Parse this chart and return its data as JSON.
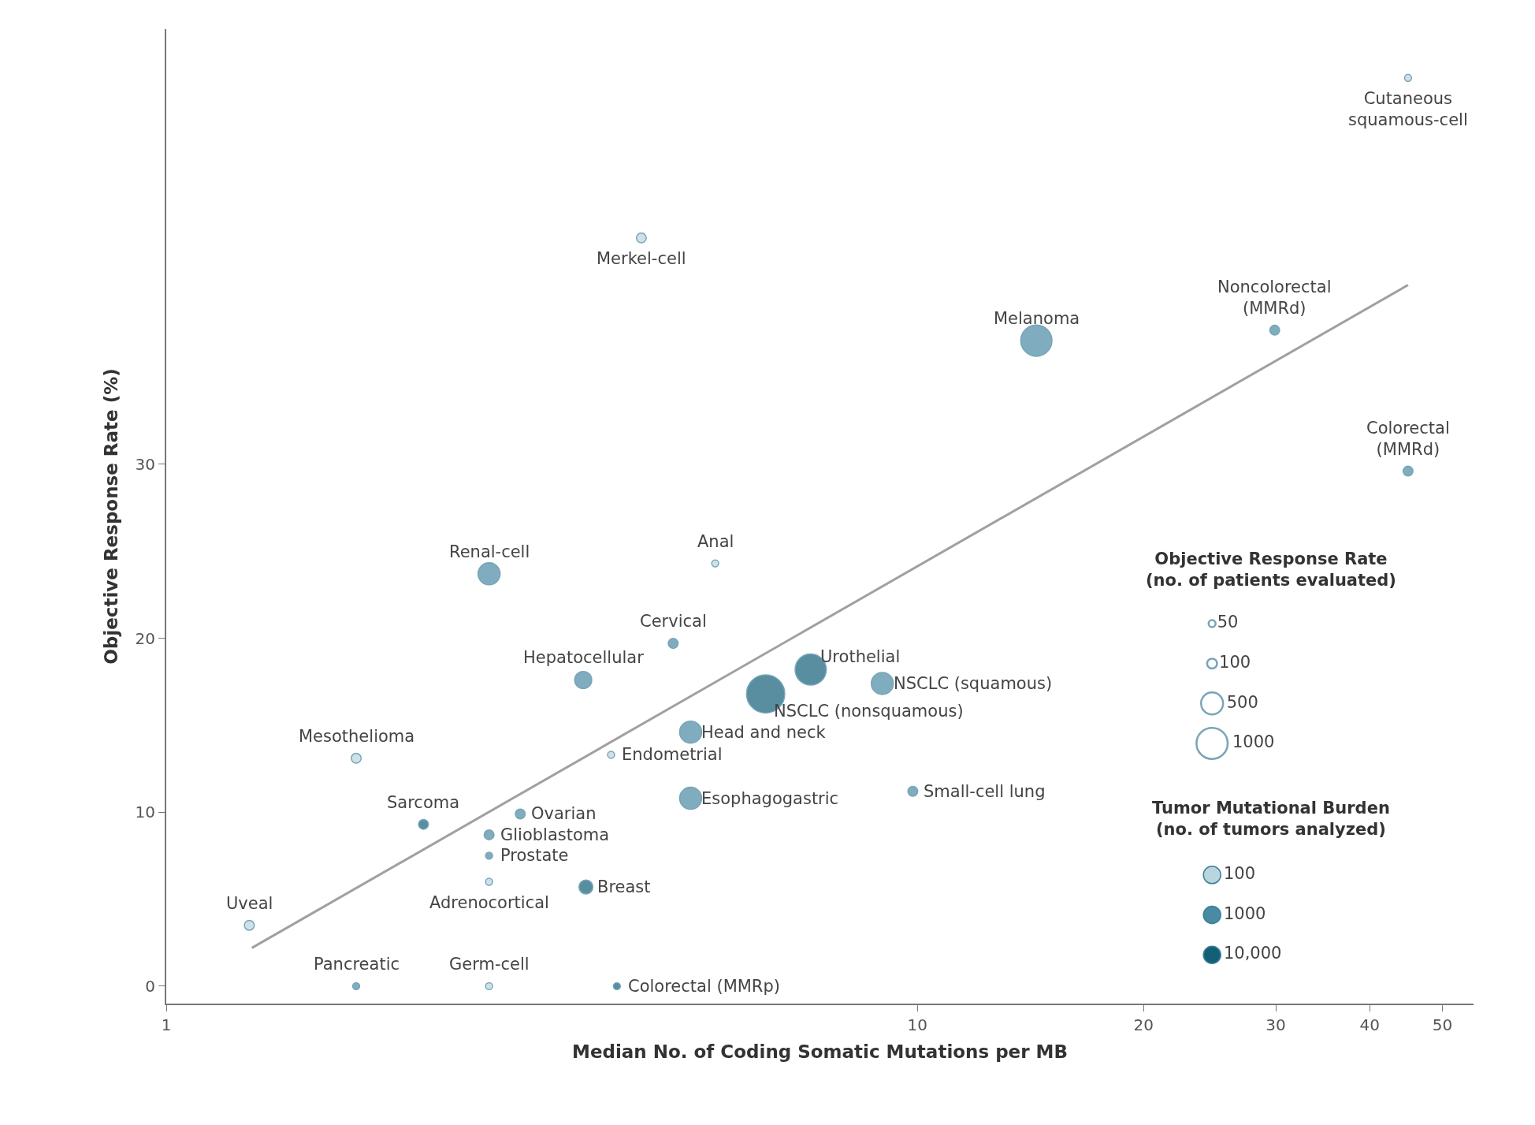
{
  "chart_data": {
    "type": "bubble",
    "xlabel": "Median No. of Coding Somatic Mutations per MB",
    "ylabel": "Objective Response Rate (%)",
    "legend_title": "Tumor Mutational Burden\n(no. of tumors analyzed)",
    "xlim": [
      1,
      55
    ],
    "xticks": [
      1,
      10,
      20,
      30,
      40,
      50
    ],
    "log": "x",
    "ylim": [
      -1,
      55
    ],
    "yticks": [
      0,
      10,
      20,
      30
    ],
    "size_legend": [
      50,
      100,
      500,
      1000
    ],
    "legend": "bottom right",
    "series": [
      {
        "name": "100",
        "color": "#b9d5e0",
        "x": [
          45.0,
          4.29,
          5.38,
          1.79,
          3.91,
          2.69,
          1.29,
          2.69
        ],
        "values": [
          52.2,
          43.0,
          24.3,
          13.1,
          13.3,
          6.0,
          3.5,
          0
        ],
        "sizes": [
          50,
          100,
          50,
          100,
          50,
          50,
          100,
          50
        ]
      },
      {
        "name": "1000",
        "color": "#4a8aa3",
        "x": [
          14.4,
          29.9,
          45.0,
          2.69,
          4.73,
          3.59,
          8.98,
          4.99,
          4.99,
          9.86,
          2.96,
          2.69,
          2.69,
          1.79
        ],
        "values": [
          37.1,
          37.7,
          29.6,
          23.7,
          19.7,
          17.6,
          17.4,
          14.6,
          10.8,
          11.2,
          9.9,
          8.7,
          7.5,
          0
        ],
        "sizes": [
          1000,
          100,
          100,
          500,
          100,
          300,
          500,
          500,
          500,
          100,
          100,
          100,
          50,
          50
        ]
      },
      {
        "name": "10,000",
        "color": "#125f78",
        "x": [
          7.21,
          6.28,
          2.2,
          3.62,
          3.98
        ],
        "values": [
          18.2,
          16.8,
          9.3,
          5.7,
          0
        ],
        "sizes": [
          1000,
          1500,
          100,
          200,
          50
        ]
      },
      {
        "type": "line",
        "color": "#a0a0a0",
        "x": [
          1.3,
          45.0
        ],
        "values": [
          2.2,
          40.3
        ]
      }
    ],
    "annotations": [
      "Objective Response Rate\n(no. of patients evaluated)",
      {
        "text": "Cutaneous\nsquamous-cell",
        "x": 45.0,
        "y": 52.2
      },
      {
        "text": "Merkel-cell",
        "x": 4.29,
        "y": 43.0
      },
      {
        "text": "Melanoma",
        "x": 14.4,
        "y": 37.1
      },
      {
        "text": "Noncolorectal\n(MMRd)",
        "x": 29.9,
        "y": 37.7
      },
      {
        "text": "Colorectal\n(MMRd)",
        "x": 45.0,
        "y": 29.6
      },
      {
        "text": "Renal-cell",
        "x": 2.69,
        "y": 23.7
      },
      {
        "text": "Anal",
        "x": 5.38,
        "y": 24.3
      },
      {
        "text": "Cervical",
        "x": 4.73,
        "y": 19.7
      },
      {
        "text": "Hepatocellular",
        "x": 3.59,
        "y": 17.6
      },
      {
        "text": "Urothelial",
        "x": 7.21,
        "y": 18.2
      },
      {
        "text": "NSCLC (squamous)",
        "x": 8.98,
        "y": 17.4
      },
      {
        "text": "NSCLC (nonsquamous)",
        "x": 6.28,
        "y": 16.8
      },
      {
        "text": "Head and neck",
        "x": 4.99,
        "y": 14.6
      },
      {
        "text": "Endometrial",
        "x": 3.91,
        "y": 13.3
      },
      {
        "text": "Mesothelioma",
        "x": 1.79,
        "y": 13.1
      },
      {
        "text": "Esophagogastric",
        "x": 4.99,
        "y": 10.8
      },
      {
        "text": "Small-cell lung",
        "x": 9.86,
        "y": 11.2
      },
      {
        "text": "Sarcoma",
        "x": 2.2,
        "y": 9.3
      },
      {
        "text": "Ovarian",
        "x": 2.96,
        "y": 9.9
      },
      {
        "text": "Glioblastoma",
        "x": 2.69,
        "y": 8.7
      },
      {
        "text": "Prostate",
        "x": 2.69,
        "y": 7.5
      },
      {
        "text": "Adrenocortical",
        "x": 2.69,
        "y": 6.0
      },
      {
        "text": "Breast",
        "x": 3.62,
        "y": 5.7
      },
      {
        "text": "Uveal",
        "x": 1.29,
        "y": 3.5
      },
      {
        "text": "Pancreatic",
        "x": 1.79,
        "y": 0
      },
      {
        "text": "Germ-cell",
        "x": 2.69,
        "y": 0
      },
      {
        "text": "Colorectal (MMRp)",
        "x": 3.98,
        "y": 0
      }
    ]
  }
}
